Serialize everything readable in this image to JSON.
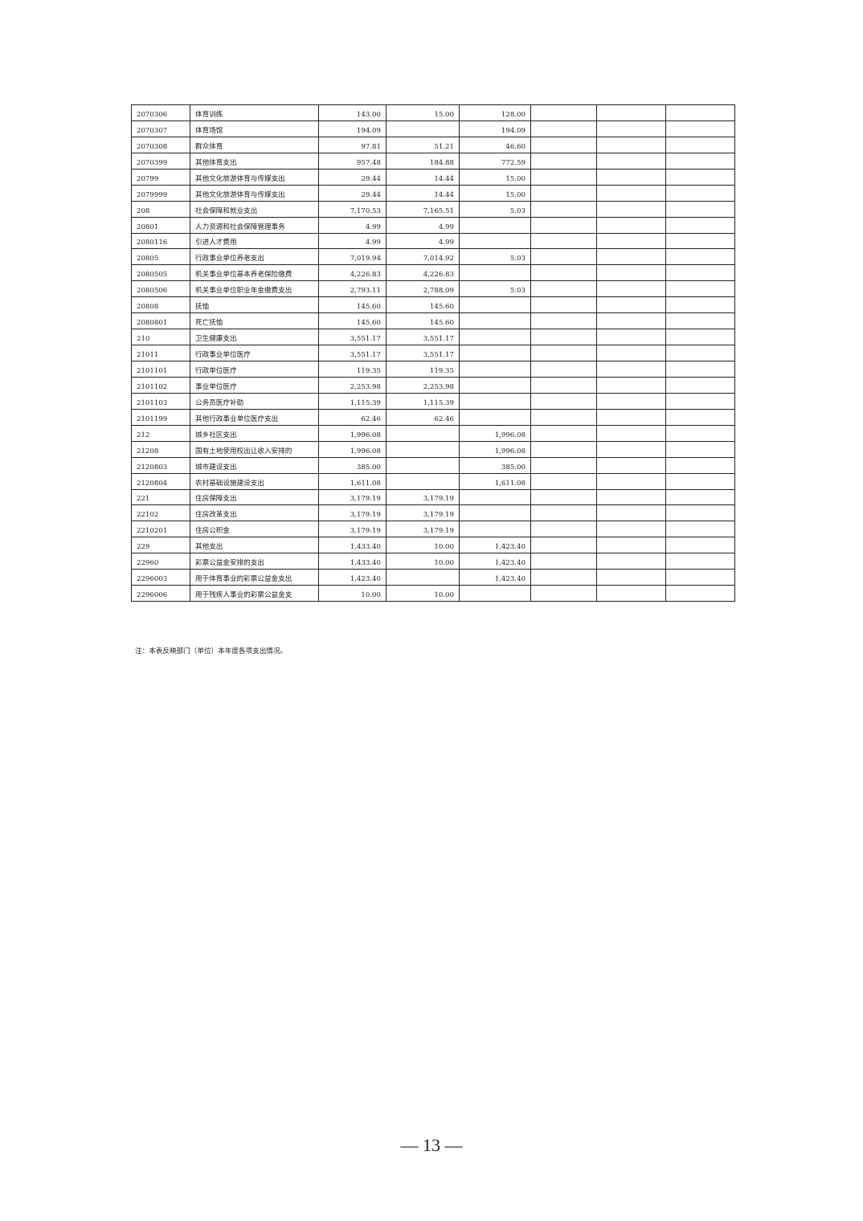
{
  "table": {
    "rows": [
      [
        "2070306",
        "体育训练",
        "143.00",
        "15.00",
        "128.00",
        "",
        "",
        ""
      ],
      [
        "2070307",
        "体育场馆",
        "194.09",
        "",
        "194.09",
        "",
        "",
        ""
      ],
      [
        "2070308",
        "群众体育",
        "97.81",
        "51.21",
        "46.60",
        "",
        "",
        ""
      ],
      [
        "2070399",
        "其他体育支出",
        "957.48",
        "184.88",
        "772.59",
        "",
        "",
        ""
      ],
      [
        "20799",
        "其他文化旅游体育与传媒支出",
        "29.44",
        "14.44",
        "15.00",
        "",
        "",
        ""
      ],
      [
        "2079999",
        "其他文化旅游体育与传媒支出",
        "29.44",
        "14.44",
        "15.00",
        "",
        "",
        ""
      ],
      [
        "208",
        "社会保障和就业支出",
        "7,170.53",
        "7,165.51",
        "5.03",
        "",
        "",
        ""
      ],
      [
        "20801",
        "人力资源和社会保障管理事务",
        "4.99",
        "4.99",
        "",
        "",
        "",
        ""
      ],
      [
        "2080116",
        "引进人才费用",
        "4.99",
        "4.99",
        "",
        "",
        "",
        ""
      ],
      [
        "20805",
        "行政事业单位养老支出",
        "7,019.94",
        "7,014.92",
        "5.03",
        "",
        "",
        ""
      ],
      [
        "2080505",
        "机关事业单位基本养老保险缴费",
        "4,226.83",
        "4,226.83",
        "",
        "",
        "",
        ""
      ],
      [
        "2080506",
        "机关事业单位职业年金缴费支出",
        "2,793.11",
        "2,788.09",
        "5.03",
        "",
        "",
        ""
      ],
      [
        "20808",
        "抚恤",
        "145.60",
        "145.60",
        "",
        "",
        "",
        ""
      ],
      [
        "2080801",
        "死亡抚恤",
        "145.60",
        "145.60",
        "",
        "",
        "",
        ""
      ],
      [
        "210",
        "卫生健康支出",
        "3,551.17",
        "3,551.17",
        "",
        "",
        "",
        ""
      ],
      [
        "21011",
        "行政事业单位医疗",
        "3,551.17",
        "3,551.17",
        "",
        "",
        "",
        ""
      ],
      [
        "2101101",
        "行政单位医疗",
        "119.35",
        "119.35",
        "",
        "",
        "",
        ""
      ],
      [
        "2101102",
        "事业单位医疗",
        "2,253.98",
        "2,253.98",
        "",
        "",
        "",
        ""
      ],
      [
        "2101103",
        "公务员医疗补助",
        "1,115.39",
        "1,115.39",
        "",
        "",
        "",
        ""
      ],
      [
        "2101199",
        "其他行政事业单位医疗支出",
        "62.46",
        "62.46",
        "",
        "",
        "",
        ""
      ],
      [
        "212",
        "城乡社区支出",
        "1,996.08",
        "",
        "1,996.08",
        "",
        "",
        ""
      ],
      [
        "21208",
        "国有土地使用权出让收入安排的",
        "1,996.08",
        "",
        "1,996.08",
        "",
        "",
        ""
      ],
      [
        "2120803",
        "城市建设支出",
        "385.00",
        "",
        "385.00",
        "",
        "",
        ""
      ],
      [
        "2120804",
        "农村基础设施建设支出",
        "1,611.08",
        "",
        "1,611.08",
        "",
        "",
        ""
      ],
      [
        "221",
        "住房保障支出",
        "3,179.19",
        "3,179.19",
        "",
        "",
        "",
        ""
      ],
      [
        "22102",
        "住房改革支出",
        "3,179.19",
        "3,179.19",
        "",
        "",
        "",
        ""
      ],
      [
        "2210201",
        "住房公积金",
        "3,179.19",
        "3,179.19",
        "",
        "",
        "",
        ""
      ],
      [
        "229",
        "其他支出",
        "1,433.40",
        "10.00",
        "1,423.40",
        "",
        "",
        ""
      ],
      [
        "22960",
        "彩票公益金安排的支出",
        "1,433.40",
        "10.00",
        "1,423.40",
        "",
        "",
        ""
      ],
      [
        "2296003",
        "用于体育事业的彩票公益金支出",
        "1,423.40",
        "",
        "1,423.40",
        "",
        "",
        ""
      ],
      [
        "2296006",
        "用于残疾人事业的彩票公益金支",
        "10.00",
        "10.00",
        "",
        "",
        "",
        ""
      ]
    ]
  },
  "note": "注：本表反映部门（单位）本年度各项支出情况。",
  "page_number": "— 13 —"
}
